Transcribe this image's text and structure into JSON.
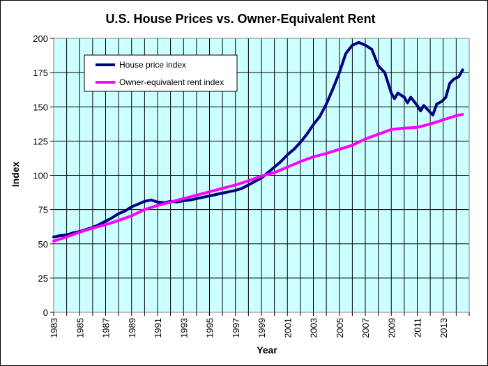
{
  "chart_data": {
    "type": "line",
    "title": "U.S. House Prices vs. Owner-Equivalent Rent",
    "xlabel": "Year",
    "ylabel": "Index",
    "xlim": [
      1983,
      2015
    ],
    "ylim": [
      0,
      200
    ],
    "yticks": [
      0,
      25,
      50,
      75,
      100,
      125,
      150,
      175,
      200
    ],
    "xticks": [
      1983,
      1985,
      1987,
      1989,
      1991,
      1993,
      1995,
      1997,
      1999,
      2001,
      2003,
      2005,
      2007,
      2009,
      2011,
      2013
    ],
    "grid": true,
    "plot_background": "#ccffff",
    "legend_placement": "top-left",
    "series": [
      {
        "name": "House price index",
        "color": "#000080",
        "points": [
          [
            1983.0,
            55
          ],
          [
            1983.5,
            56
          ],
          [
            1984.0,
            56.5
          ],
          [
            1984.5,
            58
          ],
          [
            1985.0,
            59
          ],
          [
            1985.5,
            60.5
          ],
          [
            1986.0,
            62
          ],
          [
            1986.5,
            64
          ],
          [
            1987.0,
            66.5
          ],
          [
            1987.5,
            69
          ],
          [
            1988.0,
            72
          ],
          [
            1988.5,
            74
          ],
          [
            1989.0,
            77
          ],
          [
            1989.5,
            79
          ],
          [
            1990.0,
            81
          ],
          [
            1990.5,
            82
          ],
          [
            1991.0,
            80.5
          ],
          [
            1991.5,
            80
          ],
          [
            1992.0,
            81
          ],
          [
            1992.5,
            80.5
          ],
          [
            1993.0,
            81.5
          ],
          [
            1993.5,
            82
          ],
          [
            1994.0,
            83
          ],
          [
            1994.5,
            84
          ],
          [
            1995.0,
            85
          ],
          [
            1995.5,
            86
          ],
          [
            1996.0,
            87
          ],
          [
            1996.5,
            88
          ],
          [
            1997.0,
            89
          ],
          [
            1997.5,
            90.5
          ],
          [
            1998.0,
            93
          ],
          [
            1998.5,
            95.5
          ],
          [
            1999.0,
            98
          ],
          [
            1999.5,
            102
          ],
          [
            2000.0,
            106
          ],
          [
            2000.5,
            110
          ],
          [
            2001.0,
            115
          ],
          [
            2001.5,
            119
          ],
          [
            2002.0,
            124
          ],
          [
            2002.5,
            130
          ],
          [
            2003.0,
            137
          ],
          [
            2003.5,
            143
          ],
          [
            2004.0,
            152
          ],
          [
            2004.5,
            163
          ],
          [
            2005.0,
            175
          ],
          [
            2005.5,
            189
          ],
          [
            2006.0,
            195
          ],
          [
            2006.5,
            197
          ],
          [
            2007.0,
            195
          ],
          [
            2007.5,
            192
          ],
          [
            2008.0,
            180
          ],
          [
            2008.5,
            175
          ],
          [
            2009.0,
            160
          ],
          [
            2009.25,
            156
          ],
          [
            2009.5,
            160
          ],
          [
            2010.0,
            157
          ],
          [
            2010.25,
            153
          ],
          [
            2010.5,
            157
          ],
          [
            2011.0,
            151
          ],
          [
            2011.25,
            147
          ],
          [
            2011.5,
            151
          ],
          [
            2012.0,
            146
          ],
          [
            2012.2,
            144
          ],
          [
            2012.5,
            152
          ],
          [
            2012.9,
            154
          ],
          [
            2013.2,
            157
          ],
          [
            2013.5,
            167
          ],
          [
            2013.8,
            170
          ],
          [
            2014.2,
            172
          ],
          [
            2014.5,
            177
          ]
        ]
      },
      {
        "name": "Owner-equivalent rent index",
        "color": "#ff00ff",
        "points": [
          [
            1983.0,
            52
          ],
          [
            1984.0,
            55
          ],
          [
            1985.0,
            58.5
          ],
          [
            1986.0,
            61.5
          ],
          [
            1987.0,
            64
          ],
          [
            1988.0,
            67
          ],
          [
            1989.0,
            70.5
          ],
          [
            1990.0,
            75
          ],
          [
            1991.0,
            78
          ],
          [
            1992.0,
            80.5
          ],
          [
            1993.0,
            83
          ],
          [
            1994.0,
            85.5
          ],
          [
            1995.0,
            88
          ],
          [
            1996.0,
            90.5
          ],
          [
            1997.0,
            93
          ],
          [
            1998.0,
            96
          ],
          [
            1999.0,
            99.5
          ],
          [
            2000.0,
            102
          ],
          [
            2001.0,
            106
          ],
          [
            2002.0,
            110
          ],
          [
            2003.0,
            113.5
          ],
          [
            2004.0,
            116
          ],
          [
            2005.0,
            119
          ],
          [
            2006.0,
            122
          ],
          [
            2007.0,
            126.5
          ],
          [
            2008.0,
            130
          ],
          [
            2009.0,
            133.5
          ],
          [
            2010.0,
            134.5
          ],
          [
            2011.0,
            135
          ],
          [
            2012.0,
            137.5
          ],
          [
            2013.0,
            140.5
          ],
          [
            2014.0,
            143.5
          ],
          [
            2014.5,
            144.5
          ]
        ]
      }
    ]
  }
}
